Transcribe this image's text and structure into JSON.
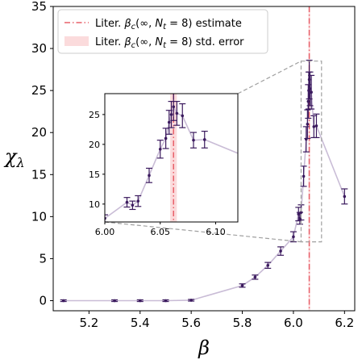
{
  "chart_data": {
    "type": "scatter",
    "xlabel": "β",
    "ylabel_main": "χ",
    "ylabel_sub": "λ",
    "xlim": [
      5.06,
      6.24
    ],
    "ylim": [
      -1.2,
      35
    ],
    "xticks": [
      "5.2",
      "5.4",
      "5.6",
      "5.8",
      "6.0",
      "6.2"
    ],
    "yticks": [
      "0",
      "5",
      "10",
      "15",
      "20",
      "25",
      "30",
      "35"
    ],
    "colors": {
      "points": "#3b1a5e",
      "line": "#c9bcd6",
      "estimate": "#e8606a",
      "error_band": "#fbdbdc",
      "zoom_box": "#a0a0a0"
    },
    "legend": {
      "placement": "top-left",
      "items": [
        {
          "prefix": "Liter. ",
          "main": "β",
          "sub": "c",
          "args": "(∞, ",
          "nsym": "N",
          "nsub": "t",
          "suffix": " = 8) estimate",
          "style": "dashdot"
        },
        {
          "prefix": "Liter. ",
          "main": "β",
          "sub": "c",
          "args": "(∞, ",
          "nsym": "N",
          "nsub": "t",
          "suffix": " = 8) std. error",
          "style": "band"
        }
      ]
    },
    "estimate": {
      "beta_c": 6.062,
      "std_error": 0.003
    },
    "series": [
      {
        "x": [
          5.1,
          5.3,
          5.4,
          5.5,
          5.6,
          5.8,
          5.85,
          5.9,
          5.95,
          6.0,
          6.02,
          6.025,
          6.03,
          6.04,
          6.05,
          6.055,
          6.058,
          6.06,
          6.062,
          6.065,
          6.07,
          6.08,
          6.09,
          6.2
        ],
        "y": [
          0.0,
          0.0,
          0.0,
          0.0,
          0.05,
          1.8,
          2.8,
          4.2,
          5.9,
          7.6,
          10.3,
          9.8,
          10.5,
          14.8,
          19.2,
          21.0,
          23.7,
          25.0,
          26.3,
          25.2,
          24.8,
          20.7,
          20.8,
          12.4
        ],
        "err": [
          0.1,
          0.1,
          0.1,
          0.1,
          0.1,
          0.2,
          0.25,
          0.35,
          0.5,
          0.6,
          0.8,
          0.7,
          0.9,
          1.2,
          1.5,
          1.7,
          2.0,
          2.2,
          2.3,
          2.0,
          2.0,
          1.3,
          1.4,
          0.9
        ]
      }
    ],
    "inset": {
      "xlim": [
        6.0,
        6.12
      ],
      "ylim": [
        7,
        28.5
      ],
      "xticks": [
        "6.00",
        "6.05",
        "6.10"
      ],
      "yticks": [
        "10",
        "15",
        "20",
        "25"
      ],
      "zoom_region_x": [
        6.03,
        6.11
      ],
      "zoom_region_y": [
        7,
        28.5
      ]
    }
  }
}
